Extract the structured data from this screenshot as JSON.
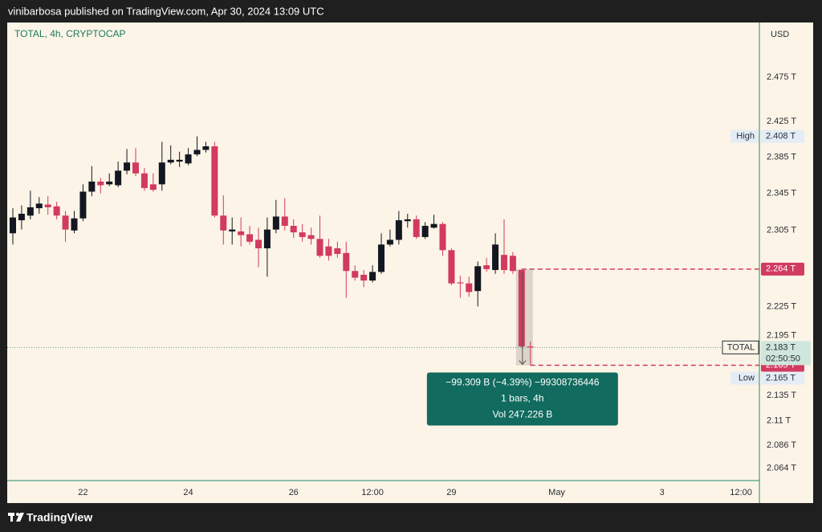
{
  "header": "vinibarbosa published on TradingView.com, Apr 30, 2024 13:09 UTC",
  "footer": "TradingView",
  "chart_data": {
    "type": "candlestick",
    "title": "TOTAL, 4h, CRYPTOCAP",
    "currency": "USD",
    "up_color": "#131722",
    "down_color": "#d23a60",
    "log_scale": true,
    "grid": false,
    "open": [
      2.302,
      2.316,
      2.321,
      2.329,
      2.333,
      2.331,
      2.321,
      2.305,
      2.318,
      2.347,
      2.358,
      2.355,
      2.354,
      2.37,
      2.379,
      2.367,
      2.355,
      2.355,
      2.379,
      2.38,
      2.378,
      2.388,
      2.393,
      2.397,
      2.321,
      2.304,
      2.304,
      2.301,
      2.295,
      2.286,
      2.306,
      2.32,
      2.31,
      2.303,
      2.3,
      2.296,
      2.288,
      2.286,
      2.281,
      2.262,
      2.258,
      2.252,
      2.261,
      2.29,
      2.295,
      2.315,
      2.317,
      2.298,
      2.308,
      2.312,
      2.284,
      2.25,
      2.249,
      2.241,
      2.268,
      2.263,
      2.279,
      2.278,
      2.263,
      2.184
    ],
    "high": [
      2.329,
      2.332,
      2.348,
      2.341,
      2.342,
      2.336,
      2.326,
      2.326,
      2.355,
      2.375,
      2.362,
      2.367,
      2.38,
      2.394,
      2.395,
      2.373,
      2.367,
      2.402,
      2.398,
      2.391,
      2.395,
      2.408,
      2.402,
      2.402,
      2.343,
      2.319,
      2.319,
      2.31,
      2.308,
      2.319,
      2.338,
      2.34,
      2.317,
      2.312,
      2.308,
      2.321,
      2.296,
      2.293,
      2.293,
      2.268,
      2.263,
      2.268,
      2.302,
      2.306,
      2.326,
      2.323,
      2.321,
      2.314,
      2.322,
      2.314,
      2.286,
      2.257,
      2.256,
      2.272,
      2.276,
      2.302,
      2.317,
      2.282,
      2.264,
      2.189
    ],
    "low": [
      2.29,
      2.306,
      2.317,
      2.323,
      2.322,
      2.317,
      2.293,
      2.302,
      2.315,
      2.342,
      2.345,
      2.353,
      2.352,
      2.366,
      2.364,
      2.348,
      2.347,
      2.348,
      2.377,
      2.374,
      2.376,
      2.386,
      2.39,
      2.319,
      2.29,
      2.29,
      2.288,
      2.29,
      2.266,
      2.256,
      2.302,
      2.305,
      2.297,
      2.293,
      2.29,
      2.276,
      2.273,
      2.276,
      2.234,
      2.252,
      2.245,
      2.25,
      2.259,
      2.288,
      2.29,
      2.308,
      2.296,
      2.296,
      2.307,
      2.278,
      2.247,
      2.234,
      2.235,
      2.225,
      2.261,
      2.259,
      2.259,
      2.259,
      2.183,
      2.165
    ],
    "close": [
      2.319,
      2.323,
      2.33,
      2.334,
      2.33,
      2.321,
      2.306,
      2.318,
      2.347,
      2.358,
      2.354,
      2.358,
      2.37,
      2.379,
      2.367,
      2.351,
      2.349,
      2.379,
      2.382,
      2.382,
      2.388,
      2.393,
      2.397,
      2.321,
      2.305,
      2.306,
      2.3,
      2.293,
      2.286,
      2.306,
      2.32,
      2.31,
      2.303,
      2.298,
      2.296,
      2.278,
      2.278,
      2.28,
      2.262,
      2.255,
      2.252,
      2.261,
      2.29,
      2.295,
      2.316,
      2.317,
      2.298,
      2.31,
      2.312,
      2.284,
      2.249,
      2.249,
      2.24,
      2.267,
      2.264,
      2.29,
      2.263,
      2.262,
      2.184,
      2.183
    ],
    "ylim": [
      2.052,
      2.539
    ],
    "yticks": [
      {
        "value": 2.475,
        "label": "2.475 T"
      },
      {
        "value": 2.425,
        "label": "2.425 T"
      },
      {
        "value": 2.385,
        "label": "2.385 T"
      },
      {
        "value": 2.345,
        "label": "2.345 T"
      },
      {
        "value": 2.305,
        "label": "2.305 T"
      },
      {
        "value": 2.225,
        "label": "2.225 T"
      },
      {
        "value": 2.195,
        "label": "2.195 T"
      },
      {
        "value": 2.135,
        "label": "2.135 T"
      },
      {
        "value": 2.11,
        "label": "2.11 T"
      },
      {
        "value": 2.086,
        "label": "2.086 T"
      },
      {
        "value": 2.064,
        "label": "2.064 T"
      }
    ],
    "xlim": [
      -0.64,
      85.1
    ],
    "xticks": [
      {
        "value": 8,
        "label": "22"
      },
      {
        "value": 20,
        "label": "24"
      },
      {
        "value": 32,
        "label": "26"
      },
      {
        "value": 41,
        "label": "12:00"
      },
      {
        "value": 50,
        "label": "29"
      },
      {
        "value": 62,
        "label": "May"
      },
      {
        "value": 74,
        "label": "3"
      },
      {
        "value": 83,
        "label": "12:00"
      }
    ],
    "markers": [
      {
        "name": "High",
        "value": 2.408,
        "label": "2.408 T"
      },
      {
        "name": "Low",
        "value": 2.165,
        "label": "2.165 T"
      }
    ],
    "price_lines": [
      {
        "value": 2.264,
        "label": "2.264 T",
        "color": "#d23a60"
      },
      {
        "value": 2.165,
        "label": "2.165 T",
        "color": "#d23a60"
      }
    ],
    "last_price": {
      "name": "TOTAL",
      "value": 2.183,
      "label": "2.183 T",
      "countdown": "02:50:50",
      "color": "#1b7a60"
    },
    "measure": {
      "lines": [
        "−99.309 B (−4.39%) −99308736446",
        "1 bars, 4h",
        "Vol 247.226 B"
      ],
      "color": "#116b5e"
    }
  }
}
